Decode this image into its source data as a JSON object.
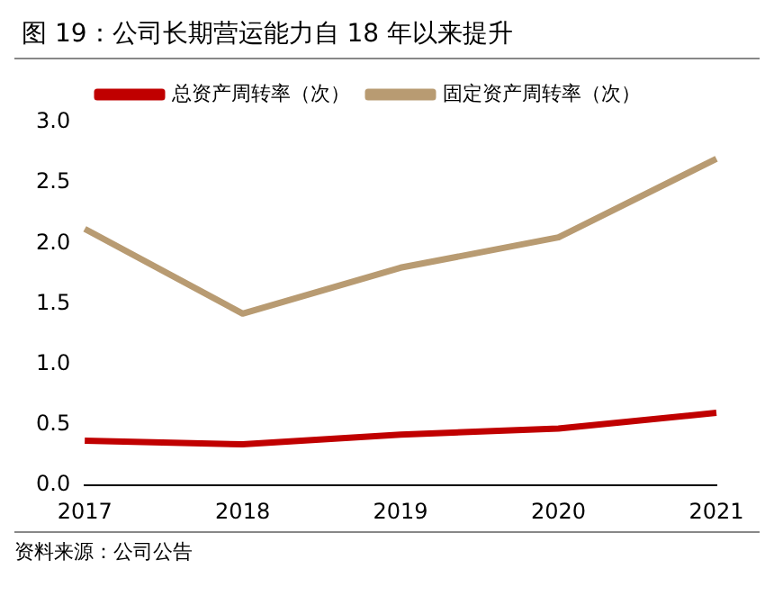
{
  "chart_data": {
    "type": "line",
    "title": "图 19：公司长期营运能力自 18 年以来提升",
    "categories": [
      "2017",
      "2018",
      "2019",
      "2020",
      "2021"
    ],
    "series": [
      {
        "name": "总资产周转率（次）",
        "color": "#c00000",
        "values": [
          0.37,
          0.34,
          0.42,
          0.47,
          0.6
        ]
      },
      {
        "name": "固定资产周转率（次）",
        "color": "#b89b72",
        "values": [
          2.12,
          1.42,
          1.8,
          2.05,
          2.7
        ]
      }
    ],
    "ylim": [
      0,
      3
    ],
    "yticks": [
      {
        "value": 0,
        "label": "0.0"
      },
      {
        "value": 0.5,
        "label": "0.5"
      },
      {
        "value": 1,
        "label": "1.0"
      },
      {
        "value": 1.5,
        "label": "1.5"
      },
      {
        "value": 2,
        "label": "2.0"
      },
      {
        "value": 2.5,
        "label": "2.5"
      },
      {
        "value": 3,
        "label": "3.0"
      }
    ],
    "grid": false,
    "legend": "top",
    "marker": "none",
    "line_style": "solid",
    "annotations": [
      "资料来源：公司公告"
    ]
  }
}
